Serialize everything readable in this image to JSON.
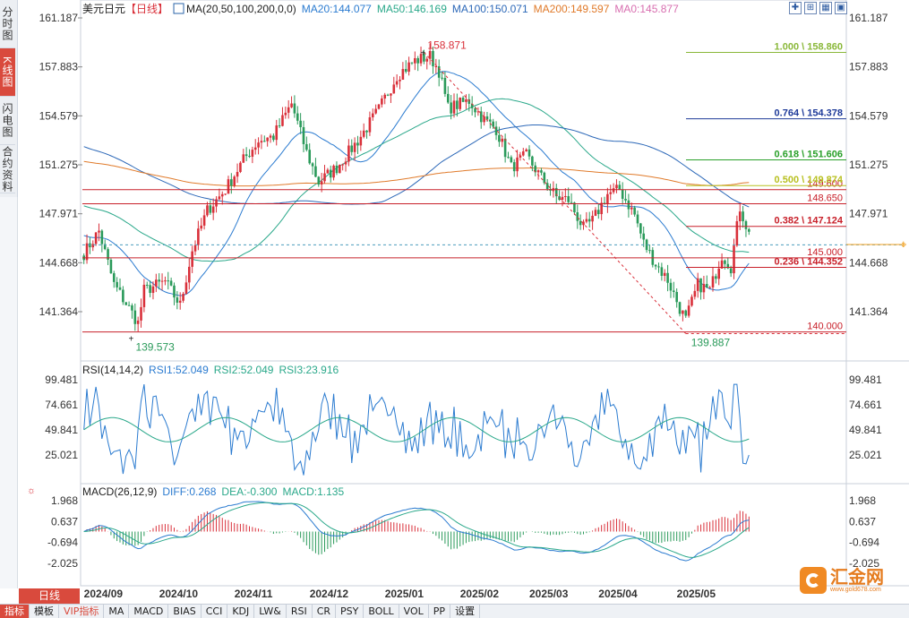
{
  "side_tabs": [
    "分时图",
    "K线图",
    "闪电图",
    "合约资料"
  ],
  "header": {
    "symbol": "美元日元",
    "period": "【日线】",
    "ma_label": "MA(20,50,100,200,0,0)",
    "ma20": "MA20:144.077",
    "ma50": "MA50:146.169",
    "ma100": "MA100:150.071",
    "ma200": "MA200:149.597",
    "ma0": "MA0:145.877"
  },
  "price_axis": [
    "161.187",
    "157.883",
    "154.579",
    "151.275",
    "147.971",
    "144.668",
    "141.364"
  ],
  "annotations": {
    "high": "158.871",
    "low": "139.573",
    "low2": "139.887"
  },
  "levels": [
    {
      "label": "1.000 \\ 158.860",
      "price": 158.86,
      "color": "#8ab83a"
    },
    {
      "label": "0.764 \\ 154.378",
      "price": 154.378,
      "color": "#1f3b9a"
    },
    {
      "label": "0.618 \\ 151.606",
      "price": 151.606,
      "color": "#2aa02a"
    },
    {
      "label": "0.500 \\ 149.874",
      "price": 149.874,
      "color": "#b8c020"
    },
    {
      "label": "0.382 \\ 147.124",
      "price": 147.124,
      "color": "#c8202a"
    },
    {
      "label": "0.236 \\ 144.352",
      "price": 144.352,
      "color": "#c8202a"
    }
  ],
  "hlines": [
    {
      "label": "149.600",
      "price": 149.6
    },
    {
      "label": "148.650",
      "price": 148.65
    },
    {
      "label": "145.000",
      "price": 145.0
    },
    {
      "label": "140.000",
      "price": 140.0
    }
  ],
  "rsi": {
    "label": "RSI(14,14,2)",
    "rsi1": "RSI1:52.049",
    "rsi2": "RSI2:52.049",
    "rsi3": "RSI3:23.916",
    "axis": [
      "99.481",
      "74.661",
      "49.841",
      "25.021"
    ]
  },
  "macd": {
    "label": "MACD(26,12,9)",
    "diff": "DIFF:0.268",
    "dea": "DEA:-0.300",
    "macd": "MACD:1.135",
    "axis": [
      "1.968",
      "0.637",
      "-0.694",
      "-2.025"
    ]
  },
  "x_axis": [
    "2024/09",
    "2024/10",
    "2024/11",
    "2024/12",
    "2025/01",
    "2025/02",
    "2025/03",
    "2025/04",
    "2025/05"
  ],
  "period_button": "日线",
  "bottom_tabs": [
    "指标",
    "模板",
    "VIP指标",
    "MA",
    "MACD",
    "BIAS",
    "CCI",
    "KDJ",
    "LW&",
    "RSI",
    "CR",
    "PSY",
    "BOLL",
    "VOL",
    "PP",
    "设置"
  ],
  "logo": {
    "text": "汇金网",
    "sub": "www.gold678.com"
  },
  "colors": {
    "up": "#d9303a",
    "down": "#2a9a5a",
    "ma20": "#2b7bd0",
    "ma50": "#2aa88a",
    "ma100": "#2c68b8",
    "ma200": "#e07a2a",
    "accent": "#d94a3d"
  },
  "chart_data": {
    "type": "candlestick",
    "keypoints": [
      [
        0,
        145.3
      ],
      [
        5,
        146.8
      ],
      [
        10,
        143.2
      ],
      [
        15,
        141.6
      ],
      [
        18,
        140.6
      ],
      [
        20,
        142.8
      ],
      [
        27,
        143.4
      ],
      [
        32,
        141.8
      ],
      [
        36,
        145.5
      ],
      [
        41,
        148.2
      ],
      [
        47,
        149.6
      ],
      [
        53,
        151.6
      ],
      [
        58,
        152.9
      ],
      [
        63,
        153.2
      ],
      [
        69,
        155.4
      ],
      [
        74,
        152.1
      ],
      [
        78,
        150.1
      ],
      [
        84,
        151.1
      ],
      [
        91,
        152.9
      ],
      [
        98,
        155.0
      ],
      [
        104,
        157.3
      ],
      [
        110,
        158.3
      ],
      [
        115,
        158.6
      ],
      [
        118,
        157.6
      ],
      [
        121,
        155.1
      ],
      [
        128,
        155.6
      ],
      [
        133,
        154.3
      ],
      [
        137,
        153.7
      ],
      [
        142,
        151.1
      ],
      [
        147,
        151.9
      ],
      [
        152,
        150.4
      ],
      [
        157,
        149.1
      ],
      [
        161,
        148.9
      ],
      [
        166,
        147.0
      ],
      [
        169,
        147.5
      ],
      [
        174,
        149.3
      ],
      [
        178,
        149.6
      ],
      [
        183,
        147.9
      ],
      [
        186,
        146.0
      ],
      [
        190,
        144.6
      ],
      [
        194,
        143.5
      ],
      [
        198,
        141.6
      ],
      [
        200,
        140.8
      ],
      [
        204,
        143.2
      ],
      [
        208,
        142.8
      ],
      [
        212,
        145.2
      ],
      [
        215,
        144.4
      ],
      [
        218,
        148.4
      ],
      [
        221,
        146.6
      ]
    ]
  }
}
